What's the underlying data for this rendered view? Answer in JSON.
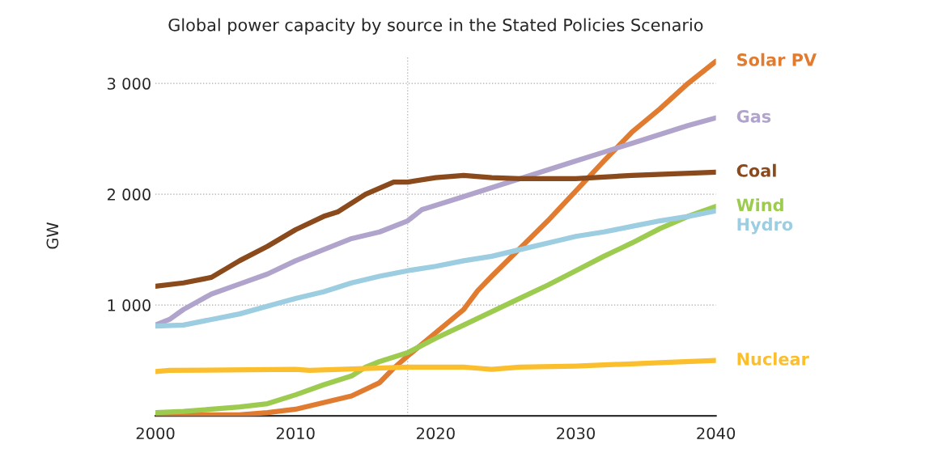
{
  "chart_data": {
    "type": "line",
    "title": "Global power capacity by source in the Stated Policies Scenario",
    "ylabel": "GW",
    "xlim": [
      2000,
      2040
    ],
    "xticks": [
      2000,
      2010,
      2020,
      2030,
      2040
    ],
    "ylim": [
      0,
      3250
    ],
    "yticks": [
      {
        "value": 1000,
        "label": "1 000"
      },
      {
        "value": 2000,
        "label": "2 000"
      },
      {
        "value": 3000,
        "label": "3 000"
      }
    ],
    "grid": "y",
    "legend": false,
    "line_style": "solid",
    "marker": "none",
    "ref_lines": [
      {
        "axis": "x",
        "value": 2018,
        "line_style": "dotted",
        "color": "#bbbbbb"
      }
    ],
    "series": [
      {
        "name": "Solar PV",
        "color": "#e07b30",
        "x": [
          2000,
          2006,
          2008,
          2010,
          2012,
          2014,
          2016,
          2017,
          2018,
          2020,
          2022,
          2023,
          2024,
          2026,
          2028,
          2030,
          2032,
          2034,
          2036,
          2038,
          2040
        ],
        "values": [
          10,
          10,
          30,
          60,
          120,
          180,
          300,
          430,
          540,
          750,
          960,
          1130,
          1260,
          1510,
          1760,
          2030,
          2300,
          2560,
          2770,
          3000,
          3200
        ]
      },
      {
        "name": "Gas",
        "color": "#b0a4cc",
        "x": [
          2000,
          2001,
          2002,
          2004,
          2006,
          2008,
          2010,
          2012,
          2014,
          2016,
          2018,
          2019,
          2022,
          2024,
          2026,
          2028,
          2030,
          2032,
          2034,
          2036,
          2038,
          2040
        ],
        "values": [
          820,
          870,
          960,
          1100,
          1190,
          1280,
          1400,
          1500,
          1600,
          1660,
          1760,
          1860,
          1980,
          2060,
          2140,
          2220,
          2300,
          2380,
          2460,
          2540,
          2620,
          2690
        ]
      },
      {
        "name": "Coal",
        "color": "#8b4a1c",
        "x": [
          2000,
          2002,
          2004,
          2006,
          2008,
          2010,
          2012,
          2013,
          2015,
          2017,
          2018,
          2020,
          2022,
          2024,
          2026,
          2030,
          2034,
          2040
        ],
        "values": [
          1170,
          1200,
          1250,
          1400,
          1530,
          1680,
          1800,
          1840,
          2000,
          2110,
          2110,
          2150,
          2170,
          2150,
          2140,
          2140,
          2170,
          2200
        ]
      },
      {
        "name": "Wind",
        "color": "#9ccb50",
        "x": [
          2000,
          2002,
          2004,
          2006,
          2008,
          2010,
          2012,
          2014,
          2015,
          2016,
          2018,
          2020,
          2022,
          2024,
          2026,
          2028,
          2030,
          2032,
          2034,
          2036,
          2038,
          2040
        ],
        "values": [
          30,
          40,
          60,
          80,
          110,
          190,
          280,
          360,
          440,
          490,
          570,
          700,
          820,
          940,
          1060,
          1180,
          1310,
          1440,
          1560,
          1690,
          1800,
          1890
        ]
      },
      {
        "name": "Hydro",
        "color": "#9ccde0",
        "x": [
          2000,
          2002,
          2004,
          2006,
          2008,
          2010,
          2012,
          2014,
          2016,
          2018,
          2020,
          2022,
          2024,
          2026,
          2028,
          2030,
          2032,
          2034,
          2036,
          2038,
          2040
        ],
        "values": [
          810,
          820,
          870,
          920,
          990,
          1060,
          1120,
          1200,
          1260,
          1310,
          1350,
          1400,
          1440,
          1500,
          1560,
          1620,
          1660,
          1710,
          1760,
          1800,
          1850
        ]
      },
      {
        "name": "Nuclear",
        "color": "#fbbf2e",
        "x": [
          2000,
          2001,
          2010,
          2011,
          2018,
          2022,
          2023,
          2024,
          2026,
          2030,
          2034,
          2036,
          2040
        ],
        "values": [
          400,
          410,
          420,
          410,
          440,
          440,
          430,
          420,
          440,
          450,
          470,
          480,
          500
        ]
      }
    ]
  }
}
